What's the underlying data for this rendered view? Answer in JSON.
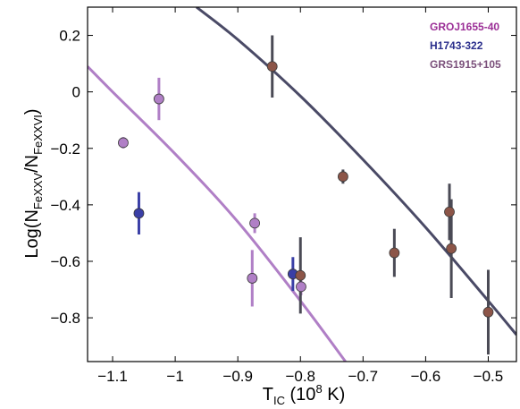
{
  "chart_data": {
    "type": "scatter",
    "xlabel": {
      "main": "T",
      "sub": "IC",
      "post": " (10",
      "sup": "8",
      "end": " K)"
    },
    "ylabel": {
      "pre": "Log(N",
      "sub1": "FeXXV",
      "mid": "/N",
      "sub2": "FeXXVI",
      "post": ")"
    },
    "xlim": [
      -1.14,
      -0.455
    ],
    "ylim": [
      -0.955,
      0.3
    ],
    "xticks": [
      -1.1,
      -1.0,
      -0.9,
      -0.8,
      -0.7,
      -0.6,
      -0.5
    ],
    "xtick_labels": [
      "−1.1",
      "−1",
      "−0.9",
      "−0.8",
      "−0.7",
      "−0.6",
      "−0.5"
    ],
    "yticks": [
      0.2,
      0.0,
      -0.2,
      -0.4,
      -0.6,
      -0.8
    ],
    "ytick_labels": [
      "0.2",
      "0",
      "−0.2",
      "−0.4",
      "−0.6",
      "−0.8"
    ],
    "grid": false,
    "legend": "top-right",
    "series": [
      {
        "name": "GROJ1655-40",
        "color": "#9b2e96",
        "marker_fill": "#b07fc6",
        "err_color": "#b07fc6",
        "points": [
          {
            "x": -1.083,
            "y": -0.18,
            "err": 0.02
          },
          {
            "x": -1.026,
            "y": -0.025,
            "err": 0.075
          },
          {
            "x": -0.873,
            "y": -0.465,
            "err": 0.035
          },
          {
            "x": -0.877,
            "y": -0.66,
            "err": 0.1
          },
          {
            "x": -0.799,
            "y": -0.69,
            "err": 0.03
          }
        ]
      },
      {
        "name": "H1743-322",
        "color": "#2b2f8c",
        "marker_fill": "#3a3fa6",
        "err_color": "#3a3fa6",
        "points": [
          {
            "x": -1.058,
            "y": -0.43,
            "err": 0.075
          },
          {
            "x": -0.812,
            "y": -0.645,
            "err": 0.06
          }
        ]
      },
      {
        "name": "GRS1915+105",
        "color": "#7a4f7a",
        "marker_fill": "#8c5548",
        "err_color": "#4a4a55",
        "points": [
          {
            "x": -0.845,
            "y": 0.09,
            "err": 0.11
          },
          {
            "x": -0.8,
            "y": -0.65,
            "err": 0.135
          },
          {
            "x": -0.732,
            "y": -0.3,
            "err": 0.025
          },
          {
            "x": -0.65,
            "y": -0.57,
            "err": 0.085
          },
          {
            "x": -0.562,
            "y": -0.425,
            "err": 0.1
          },
          {
            "x": -0.559,
            "y": -0.555,
            "err": 0.175
          },
          {
            "x": -0.5,
            "y": -0.78,
            "err": 0.15
          }
        ]
      }
    ],
    "curves": [
      {
        "color": "#b07fc6",
        "points": [
          [
            -1.14,
            0.09
          ],
          [
            -1.1,
            0.0
          ],
          [
            -1.0,
            -0.22
          ],
          [
            -0.9,
            -0.46
          ],
          [
            -0.8,
            -0.74
          ],
          [
            -0.728,
            -0.955
          ]
        ]
      },
      {
        "color": "#4a4a66",
        "points": [
          [
            -0.966,
            0.3
          ],
          [
            -0.9,
            0.185
          ],
          [
            -0.8,
            -0.015
          ],
          [
            -0.7,
            -0.24
          ],
          [
            -0.6,
            -0.48
          ],
          [
            -0.5,
            -0.74
          ],
          [
            -0.455,
            -0.86
          ]
        ]
      }
    ]
  }
}
